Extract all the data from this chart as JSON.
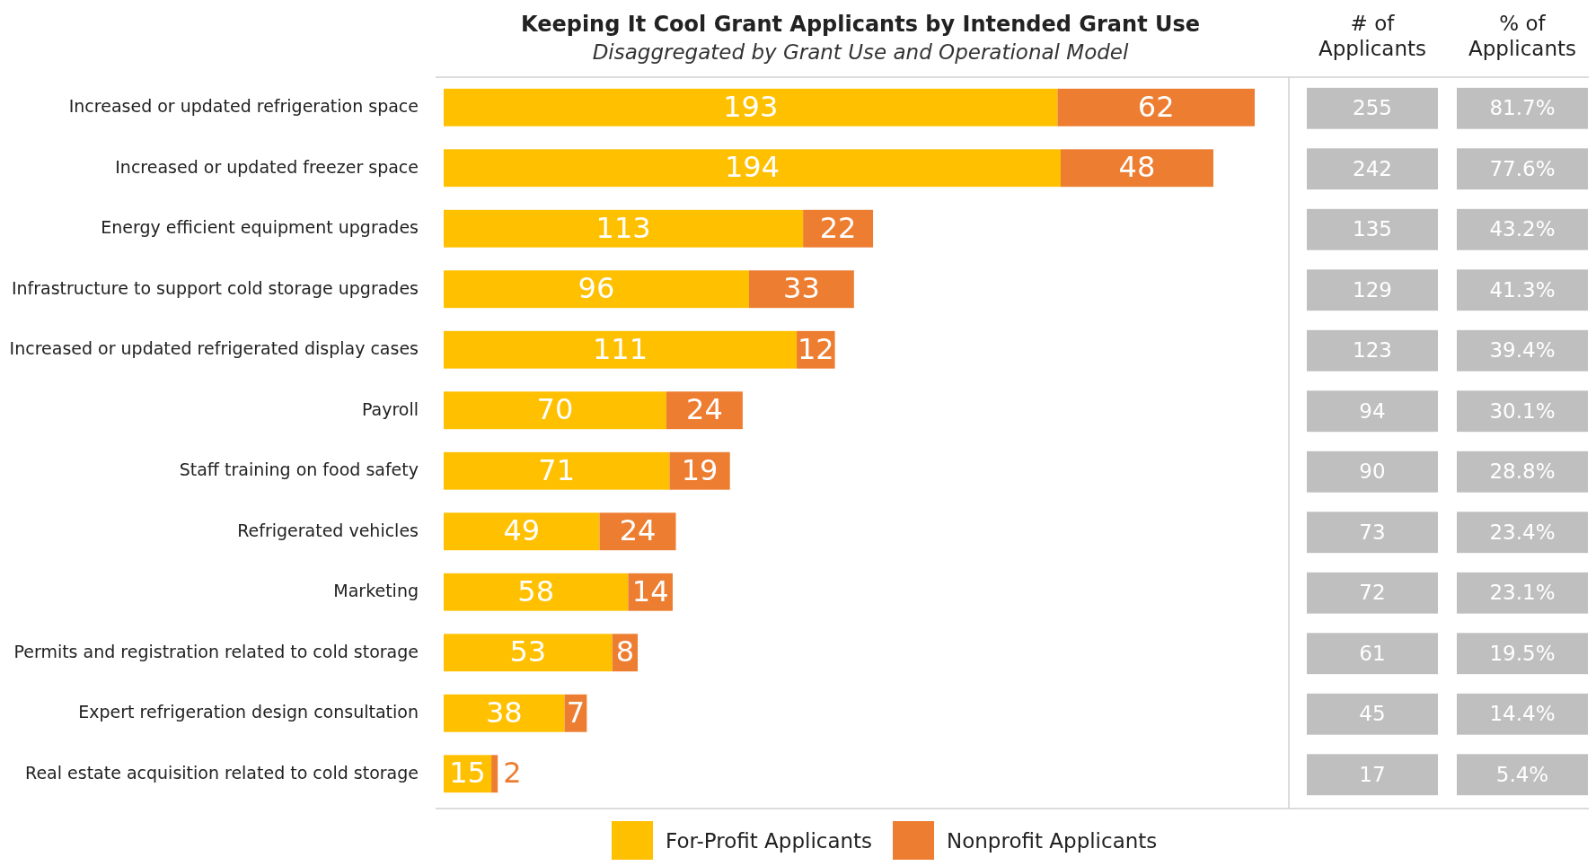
{
  "chart_data": {
    "type": "bar",
    "orientation": "horizontal",
    "stacked": true,
    "title": "Keeping It Cool Grant Applicants by Intended Grant Use",
    "subtitle": "Disaggregated by Grant Use and Operational Model",
    "categories": [
      "Increased or updated refrigeration space",
      "Increased or updated freezer space",
      "Energy efficient equipment upgrades",
      "Infrastructure to support cold storage upgrades",
      "Increased or updated refrigerated display cases",
      "Payroll",
      "Staff training on food safety",
      "Refrigerated vehicles",
      "Marketing",
      "Permits and registration related to cold storage",
      "Expert refrigeration design consultation",
      "Real estate acquisition related to cold storage"
    ],
    "series": [
      {
        "name": "For-Profit Applicants",
        "color": "#ffc000",
        "values": [
          193,
          194,
          113,
          96,
          111,
          70,
          71,
          49,
          58,
          53,
          38,
          15
        ]
      },
      {
        "name": "Nonprofit Applicants",
        "color": "#ed7d31",
        "values": [
          62,
          48,
          22,
          33,
          12,
          24,
          19,
          24,
          14,
          8,
          7,
          2
        ]
      }
    ],
    "data_labels": true,
    "annotations": [
      "# of Applicants",
      "% of Applicants",
      "255",
      "242",
      "135",
      "129",
      "123",
      "94",
      "90",
      "73",
      "72",
      "61",
      "45",
      "17",
      "81.7%",
      "77.6%",
      "43.2%",
      "41.3%",
      "39.4%",
      "30.1%",
      "28.8%",
      "23.4%",
      "23.1%",
      "19.5%",
      "14.4%",
      "5.4%"
    ],
    "legend": "bottom"
  }
}
